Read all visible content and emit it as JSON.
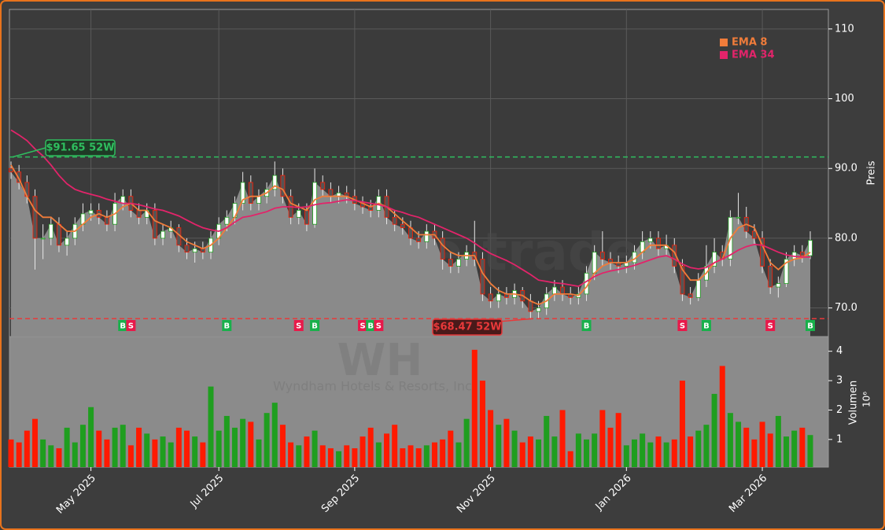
{
  "chart_data": {
    "type": "candlestick",
    "watermark": "forexsignale.trade",
    "symbol": "WH",
    "company": "Wyndham Hotels & Resorts, Inc.",
    "categories": [
      null,
      null,
      null,
      null,
      null,
      null,
      null,
      null,
      null,
      null,
      "May 2025",
      null,
      null,
      null,
      null,
      null,
      null,
      null,
      null,
      null,
      null,
      null,
      null,
      null,
      null,
      null,
      "Jul 2025",
      null,
      null,
      null,
      null,
      null,
      null,
      null,
      null,
      null,
      null,
      null,
      null,
      null,
      null,
      null,
      null,
      "Sep 2025",
      null,
      null,
      null,
      null,
      null,
      null,
      null,
      null,
      null,
      null,
      null,
      null,
      null,
      null,
      null,
      null,
      "Nov 2025",
      null,
      null,
      null,
      null,
      null,
      null,
      null,
      null,
      null,
      null,
      null,
      null,
      null,
      null,
      null,
      null,
      "Jan 2026",
      null,
      null,
      null,
      null,
      null,
      null,
      null,
      null,
      null,
      null,
      null,
      null,
      null,
      null,
      null,
      null,
      "Mar 2026",
      null,
      null,
      null,
      null,
      null,
      null
    ],
    "open": [
      90,
      89.5,
      88,
      86,
      80,
      80,
      82,
      79,
      80,
      82,
      83.5,
      84,
      83,
      82,
      85,
      86,
      84,
      83,
      84,
      80,
      81,
      81.5,
      79,
      78,
      78.5,
      78,
      80,
      82,
      83,
      85,
      88,
      85,
      86,
      87,
      89,
      86,
      83,
      84,
      82,
      88,
      87,
      86,
      86.5,
      86,
      85,
      84.5,
      84,
      86,
      83,
      82,
      81.5,
      80,
      79.5,
      81,
      80,
      77,
      76,
      77,
      78,
      77,
      72,
      71,
      72,
      71.5,
      72.5,
      71,
      69.5,
      70,
      72,
      73,
      72,
      71.5,
      72,
      75,
      78,
      77,
      76.5,
      76,
      76.5,
      78,
      79.5,
      80,
      78.5,
      79,
      76,
      72,
      71.5,
      74,
      76,
      78,
      77,
      83,
      83,
      81,
      80,
      76,
      73,
      73.5,
      77,
      78,
      77.5
    ],
    "high": [
      91,
      90.5,
      89,
      87,
      82,
      83,
      83,
      81,
      83,
      85,
      85,
      85,
      84,
      86.5,
      87,
      87,
      85,
      85,
      85,
      82,
      82.5,
      82,
      80,
      79.5,
      79.5,
      81,
      83,
      84,
      86,
      89.5,
      89,
      87,
      88,
      91,
      90,
      87,
      85,
      85,
      90,
      89,
      88,
      87.5,
      87.5,
      87,
      86,
      85.5,
      87,
      87,
      84,
      83,
      82.5,
      81,
      82,
      82,
      81,
      78,
      78,
      79,
      82.5,
      78,
      73,
      73,
      73,
      73.5,
      73,
      72,
      71,
      73,
      74,
      74,
      73,
      73,
      76,
      79,
      81,
      78,
      77.5,
      77.5,
      79,
      81,
      81,
      81,
      80.5,
      80,
      77,
      73,
      75,
      79,
      80,
      79,
      84,
      86.5,
      84.5,
      82,
      81,
      77,
      74.5,
      78,
      79,
      79,
      81
    ],
    "low": [
      88.5,
      87,
      85,
      75.5,
      77,
      79,
      78,
      77.5,
      79,
      81,
      82.5,
      82,
      81,
      81,
      84,
      83,
      82,
      82,
      79,
      79,
      80,
      78,
      77,
      76.5,
      77,
      77,
      79,
      81,
      82,
      84,
      84,
      84,
      85,
      86,
      85,
      82,
      82,
      81,
      81.5,
      86,
      85,
      85,
      85,
      84,
      83.5,
      83,
      83,
      82,
      81,
      80.5,
      79,
      78.5,
      78.5,
      79,
      75.5,
      75,
      75,
      76,
      76,
      71,
      70,
      70,
      70.5,
      70.5,
      70,
      68.5,
      68.5,
      69,
      71,
      71,
      70.5,
      70.5,
      71,
      74,
      76,
      75.5,
      75,
      75,
      75.5,
      77,
      78.5,
      77.5,
      77.5,
      75,
      71,
      70.5,
      71,
      73,
      75,
      76,
      76,
      82,
      80,
      79,
      75,
      72,
      71.5,
      73,
      76,
      76.5,
      77
    ],
    "close": [
      89.5,
      88,
      86,
      80,
      80,
      82,
      79,
      80,
      82,
      83.5,
      84,
      83,
      82,
      85,
      86,
      84,
      83,
      84,
      80,
      81,
      81.5,
      79,
      78,
      78.5,
      78,
      80,
      82,
      83,
      85,
      88,
      85,
      86,
      87,
      89,
      86,
      83,
      84,
      82,
      88,
      87,
      86,
      86.5,
      86,
      85,
      84.5,
      84,
      86,
      83,
      82,
      81.5,
      80,
      79.5,
      81,
      80,
      77,
      76,
      77,
      78,
      77,
      72,
      71,
      72,
      71.5,
      72.5,
      71,
      69.5,
      70,
      72,
      73,
      72,
      71.5,
      72,
      75,
      78,
      77,
      76.5,
      76,
      76.5,
      78,
      79.5,
      80,
      78.5,
      79,
      76,
      72,
      71.5,
      74,
      76,
      78,
      77,
      83,
      83,
      81,
      80,
      76,
      73,
      73.5,
      77,
      78,
      77.5,
      79.7
    ],
    "up_color": "#1f9e1f",
    "down_color": "#ff1a00",
    "area_color": "#8a8a8a",
    "series": [
      {
        "name": "EMA 8",
        "color": "#f07c3a",
        "values": [
          90.5,
          88.5,
          86,
          84,
          83,
          83,
          82,
          81,
          81,
          82,
          83,
          83.5,
          83,
          83.5,
          84.5,
          85,
          84,
          84,
          82.5,
          82,
          81.5,
          80.5,
          79.5,
          79,
          78.5,
          79,
          80,
          81.5,
          83,
          85.5,
          86,
          86,
          86.5,
          87.5,
          87,
          85,
          84.5,
          84,
          85.5,
          86,
          86,
          86,
          86,
          85.5,
          85,
          84.5,
          85,
          84.5,
          83.5,
          82.5,
          81.5,
          80.5,
          80.5,
          80.5,
          79,
          78,
          77.5,
          77.5,
          77.5,
          75,
          73.5,
          72.5,
          72,
          72,
          71.8,
          71,
          70.5,
          71,
          72,
          72,
          72,
          71.8,
          73,
          75,
          76,
          76.5,
          76.5,
          76.5,
          77,
          78,
          79,
          79,
          79,
          78,
          75.5,
          74,
          74,
          75,
          76.5,
          77,
          80,
          81.5,
          82,
          81.5,
          79,
          76.5,
          75.5,
          76.5,
          77,
          77.2,
          78
        ]
      },
      {
        "name": "EMA 34",
        "color": "#e2246a",
        "values": [
          95.5,
          94.8,
          94,
          92.8,
          91.8,
          90.5,
          89,
          87.8,
          87,
          86.6,
          86.3,
          86,
          85.6,
          85.3,
          85,
          85,
          84.8,
          84.5,
          84.2,
          84,
          83.6,
          83.2,
          82.6,
          82,
          81.5,
          81.2,
          81,
          81.5,
          82.3,
          83,
          83.2,
          83.5,
          83.8,
          84.3,
          84.5,
          84.5,
          84.4,
          84.5,
          84.8,
          85,
          85.1,
          85.3,
          85.5,
          85.4,
          85.2,
          85,
          84.8,
          84.5,
          84,
          83.7,
          83.3,
          83,
          82.5,
          82,
          81.5,
          81,
          80.5,
          80,
          79.3,
          78.5,
          77.8,
          77.3,
          76.8,
          76.2,
          75.5,
          74.8,
          74,
          73.8,
          73.6,
          73.5,
          73.3,
          73.1,
          73.8,
          74.5,
          75,
          75.3,
          75.5,
          75.8,
          76.1,
          76.5,
          76.9,
          77.3,
          77.5,
          77,
          76.3,
          75.8,
          75.6,
          75.8,
          76.5,
          77,
          77.6,
          78.3,
          78.8,
          79.1,
          79,
          78.5,
          78,
          77.6,
          77.4,
          77.3,
          77.3
        ]
      }
    ],
    "signals": [
      null,
      null,
      null,
      null,
      null,
      null,
      null,
      null,
      null,
      null,
      null,
      null,
      null,
      null,
      "B",
      "S",
      null,
      null,
      null,
      null,
      null,
      null,
      null,
      null,
      null,
      null,
      null,
      "B",
      null,
      null,
      null,
      null,
      null,
      null,
      null,
      null,
      "S",
      null,
      "B",
      null,
      null,
      null,
      null,
      null,
      "S",
      "B",
      "S",
      null,
      null,
      null,
      null,
      null,
      null,
      null,
      null,
      null,
      null,
      null,
      null,
      null,
      null,
      null,
      null,
      null,
      null,
      null,
      null,
      null,
      null,
      null,
      null,
      null,
      "B",
      null,
      null,
      null,
      null,
      null,
      null,
      null,
      null,
      null,
      null,
      null,
      "S",
      null,
      null,
      "B",
      null,
      null,
      null,
      null,
      null,
      null,
      null,
      "S",
      null,
      null,
      null,
      null,
      "B"
    ],
    "buy_color": "#19b04b",
    "sell_color": "#e8194a",
    "high_52w": {
      "value": 91.65,
      "label": "$91.65 52W",
      "color": "#2fbf5f"
    },
    "low_52w": {
      "value": 68.47,
      "label": "$68.47 52W",
      "color": "#e8393a"
    },
    "ylabel": "Preis",
    "ylim": [
      65.9,
      112.8
    ],
    "yticks": [
      {
        "value": 70,
        "label": "70.0"
      },
      {
        "value": 80,
        "label": "80.0"
      },
      {
        "value": 90,
        "label": "90.0"
      },
      100,
      110
    ],
    "grid": true,
    "legend": "upper right",
    "volume": {
      "ylabel": "Volumen",
      "scale": "10⁶",
      "ylim": [
        0.06,
        4.5
      ],
      "yticks": [
        1,
        2,
        3,
        4
      ],
      "values": [
        1.0,
        0.9,
        1.3,
        1.7,
        1.0,
        0.8,
        0.7,
        1.4,
        0.9,
        1.5,
        2.1,
        1.3,
        1.0,
        1.4,
        1.5,
        0.8,
        1.4,
        1.2,
        1.0,
        1.1,
        0.9,
        1.4,
        1.3,
        1.1,
        0.9,
        2.8,
        1.3,
        1.8,
        1.4,
        1.7,
        1.6,
        1.0,
        1.9,
        2.25,
        1.5,
        0.9,
        0.8,
        1.1,
        1.3,
        0.8,
        0.7,
        0.6,
        0.8,
        0.7,
        1.1,
        1.4,
        0.9,
        1.2,
        1.5,
        0.7,
        0.8,
        0.7,
        0.8,
        0.9,
        1.0,
        1.3,
        0.9,
        1.7,
        4.05,
        3.0,
        2.0,
        1.5,
        1.7,
        1.3,
        0.9,
        1.1,
        1.0,
        1.8,
        1.1,
        2.0,
        0.6,
        1.2,
        1.0,
        1.2,
        2.0,
        1.4,
        1.9,
        0.8,
        1.0,
        1.2,
        0.9,
        1.1,
        0.9,
        1.0,
        3.0,
        1.1,
        1.3,
        1.5,
        2.55,
        3.5,
        1.9,
        1.6,
        1.4,
        1.0,
        1.6,
        1.2,
        1.8,
        1.1,
        1.3,
        1.4,
        1.15
      ]
    }
  }
}
